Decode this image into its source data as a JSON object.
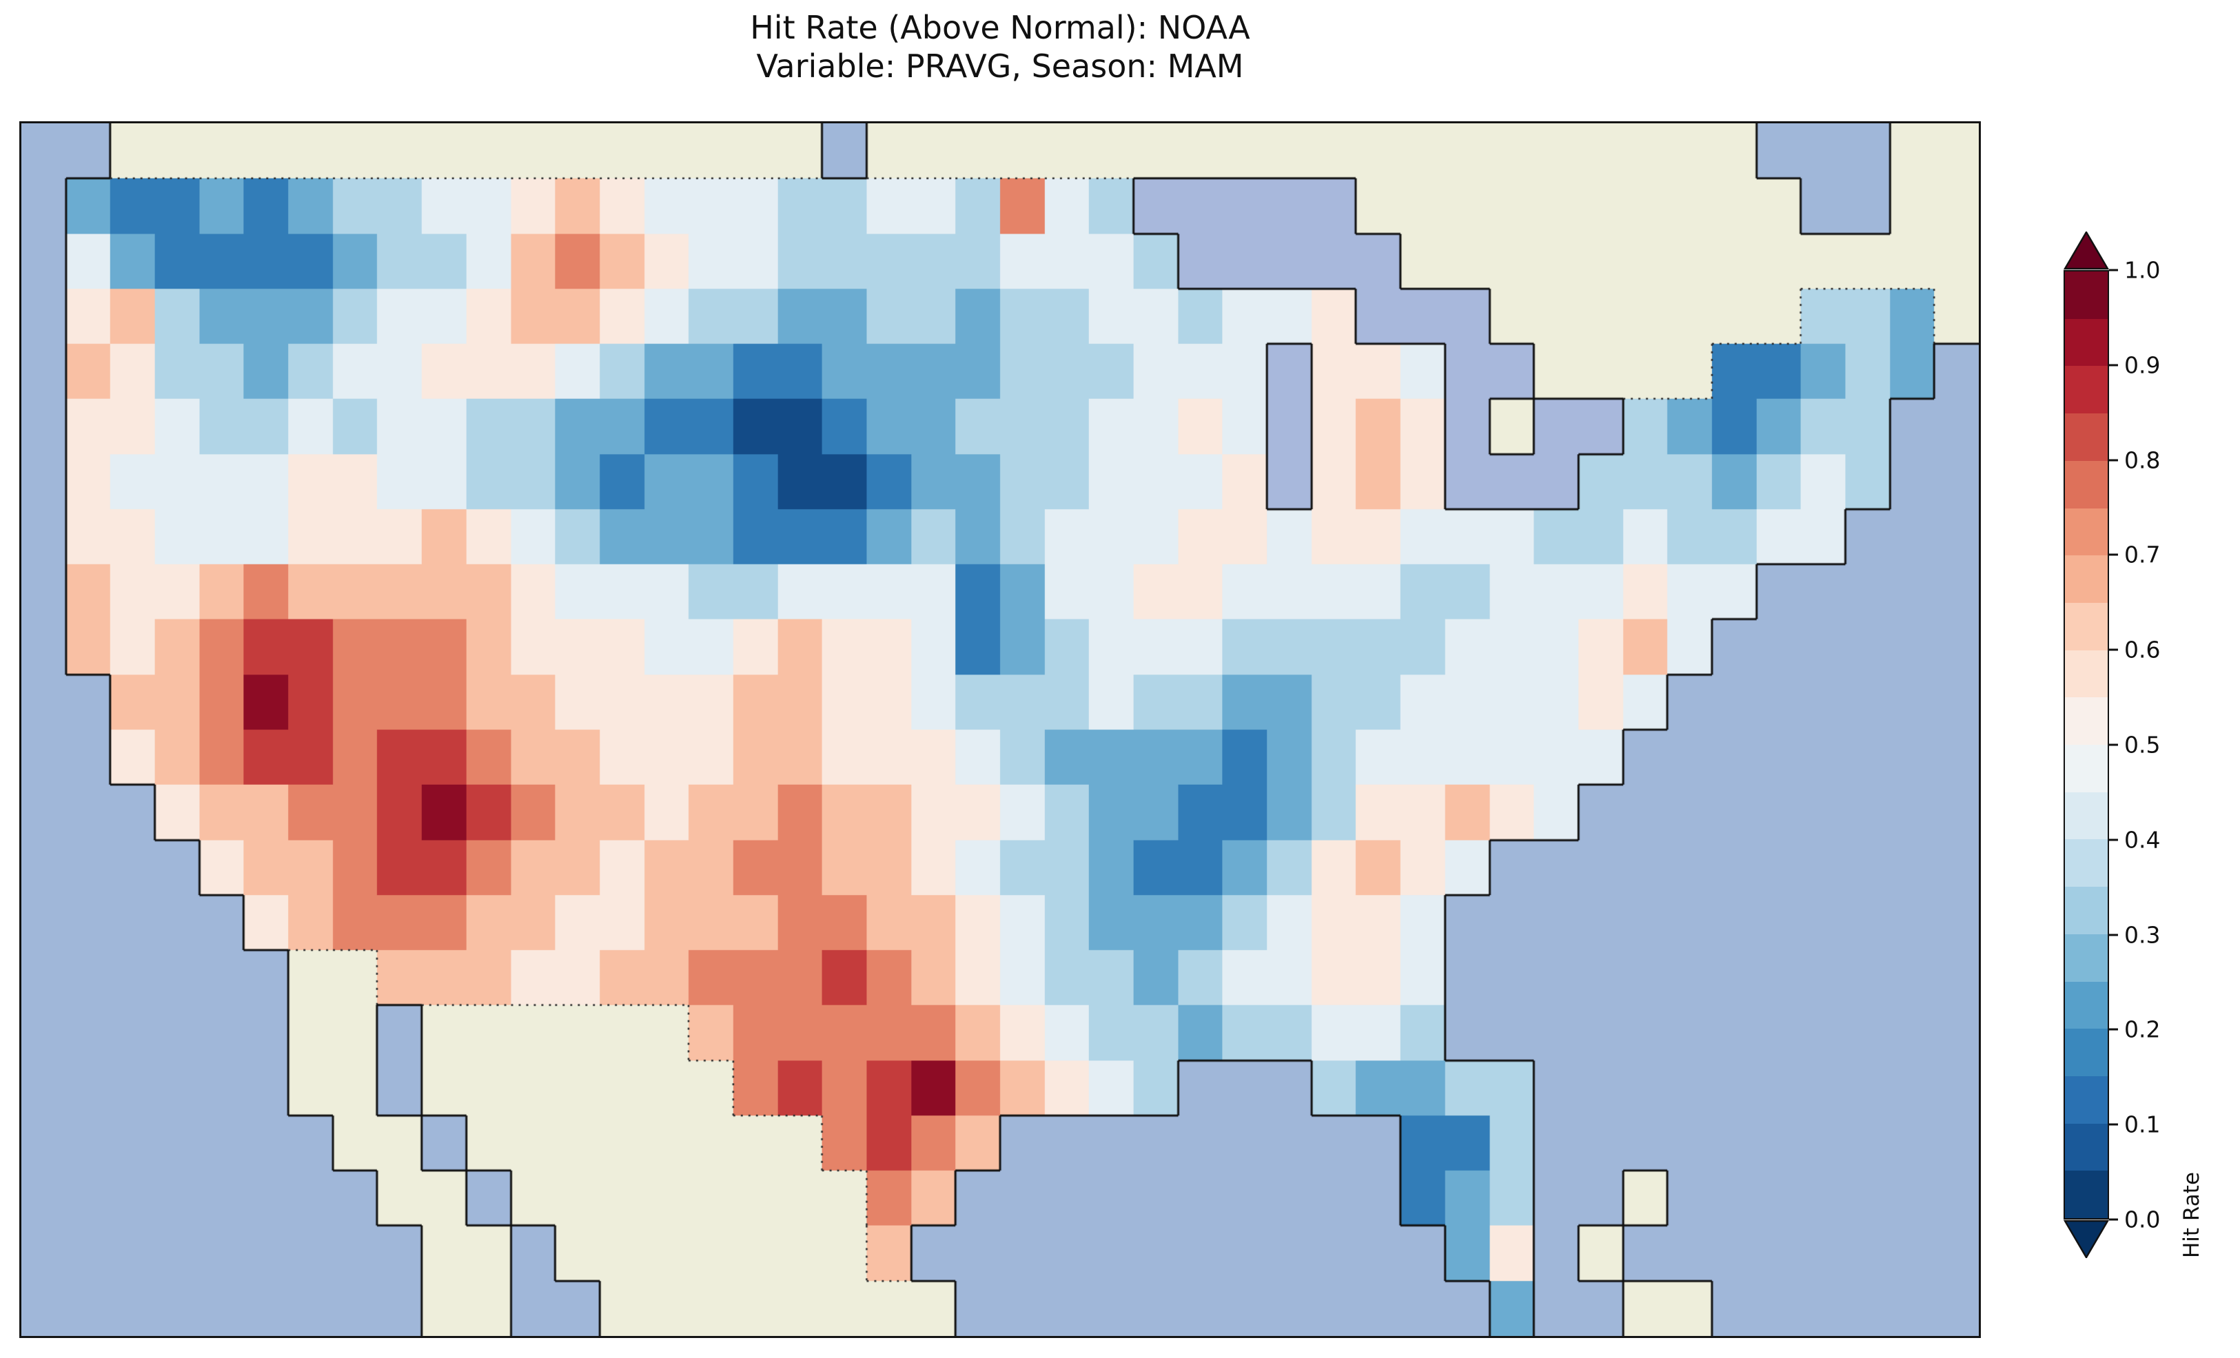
{
  "figure": {
    "title_line1": "Hit Rate (Above Normal): NOAA",
    "title_line2": "Variable: PRAVG, Season: MAM"
  },
  "colorbar": {
    "label": "Hit Rate",
    "ticks": [
      "0.0",
      "0.1",
      "0.2",
      "0.3",
      "0.4",
      "0.5",
      "0.6",
      "0.7",
      "0.8",
      "0.9",
      "1.0"
    ],
    "min": 0.0,
    "max": 1.0,
    "step": 0.05,
    "extend": "both"
  },
  "colors": {
    "ocean": "#a0b7d9",
    "lake": "#a8b8dc",
    "land_no_data": "#eeeedb",
    "coastline": "#101010",
    "national_border": "#2f2f2f",
    "figure_background": "#ffffff",
    "text": "#111111"
  },
  "chart_data": {
    "type": "heatmap",
    "title": "Hit Rate (Above Normal): NOAA",
    "subtitle": "Variable: PRAVG, Season: MAM",
    "value_name": "Hit Rate",
    "value_range": [
      0.0,
      1.0
    ],
    "geography": "Contiguous United States hit-rate field; surrounding ocean, Canada, Mexico, Bahamas shown with no data",
    "colormap": {
      "name": "RdBu_r",
      "anchors": [
        {
          "t": 0.0,
          "color": "#053061"
        },
        {
          "t": 0.1,
          "color": "#2166ac"
        },
        {
          "t": 0.2,
          "color": "#4393c3"
        },
        {
          "t": 0.3,
          "color": "#92c5de"
        },
        {
          "t": 0.4,
          "color": "#d1e5f0"
        },
        {
          "t": 0.5,
          "color": "#f7f7f7"
        },
        {
          "t": 0.6,
          "color": "#fddbc7"
        },
        {
          "t": 0.7,
          "color": "#f4a582"
        },
        {
          "t": 0.8,
          "color": "#d6604d"
        },
        {
          "t": 0.9,
          "color": "#b2182b"
        },
        {
          "t": 1.0,
          "color": "#67001f"
        }
      ]
    },
    "grid": {
      "encoding": "Each row string is one latitude band (top=north). '~'=ocean, 'L'=Great Lake, '#'=land outside CONUS (no data), digit d = hit-rate bin with value (d+0.5)/10",
      "cols": 44,
      "row_count": 22,
      "rows": [
        "~~################~####################~~~##",
        "~211212334456544433443743LLLLL##########~~##",
        "~4211112334676544333334443LLLLL#############",
        "~56322234456654332233233443445LLL#######332#",
        "~653323445554322112222333444L554LL####11232~",
        "~554334344332211001223334454L565L#LL321233~~",
        "~544445544332122100122334445L565LLL3332343~~",
        "~5544455565432221112323444554554443343344~~~",
        "~65567666665444334444124455444433444544~~~~~",
        "~6567887776555445655412344433333444564~~~~~~",
        "~~66798777665555665543334332233444454~~~~~~~",
        "~~5678878876655566555432222123444444~~~~~~~~",
        "~~~56677898766566766554322112355654~~~~~~~~~",
        "~~~~56678876656677665433211235654~~~~~~~~~~~",
        "~~~~~567776655666776654322234554~~~~~~~~~~~~",
        "~~~~~~##666556677787654332344554~~~~~~~~~~~~",
        "~~~~~~##~######67777765433233443~~~~~~~~~~~~",
        "~~~~~~##~#######7878976543~~~32233~~~~~~~~~~",
        "~~~~~~~##~########7876~~~~~~~~~113~~~~~~~~~~",
        "~~~~~~~~##~########76~~~~~~~~~~123~~#~~~~~~~",
        "~~~~~~~~~##~#######6~~~~~~~~~~~~25~#~~~~~~~~",
        "~~~~~~~~~##~~########~~~~~~~~~~~~2~~##~~~~~~"
      ]
    }
  }
}
